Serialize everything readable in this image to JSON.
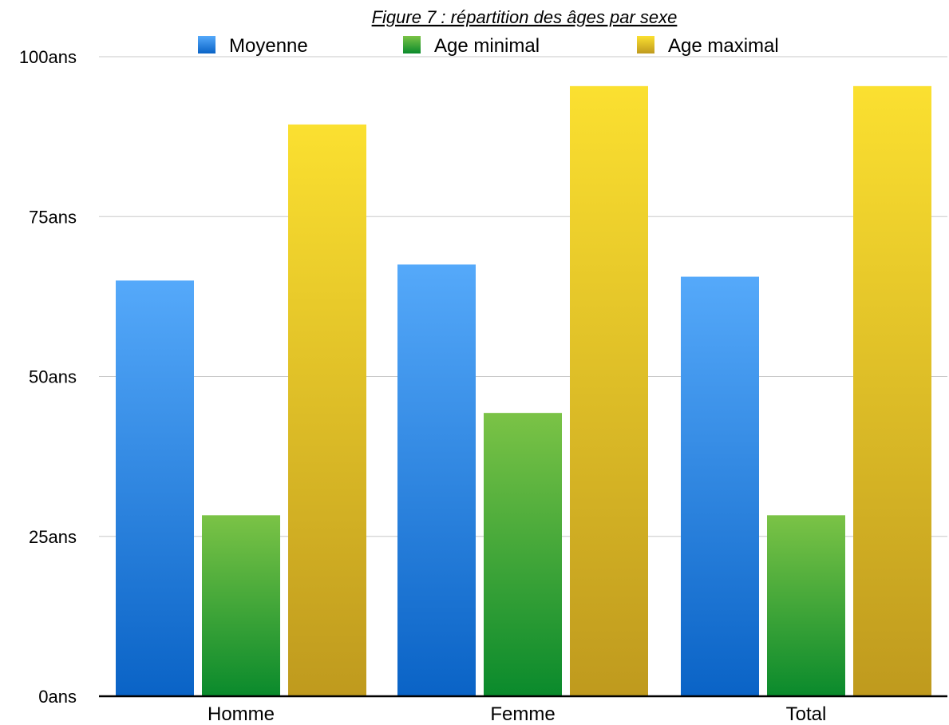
{
  "chart_data": {
    "type": "bar",
    "title": "Figure 7 : répartition des âges par sexe",
    "xlabel": "",
    "ylabel": "",
    "categories": [
      "Homme",
      "Femme",
      "Total"
    ],
    "series": [
      {
        "name": "Moyenne",
        "values": [
          65,
          67.5,
          65.6
        ],
        "color": "#3a8ee6"
      },
      {
        "name": "Age minimal",
        "values": [
          28.3,
          44.3,
          28.3
        ],
        "color": "#3aa83a"
      },
      {
        "name": "Age maximal",
        "values": [
          89.4,
          95.4,
          95.4
        ],
        "color": "#e3c32a"
      }
    ],
    "ylim": [
      0,
      100
    ],
    "yticks": [
      0,
      25,
      50,
      75,
      100
    ],
    "ytick_labels": [
      "0ans",
      "25ans",
      "50ans",
      "75ans",
      "100ans"
    ],
    "grid": true,
    "legend_position": "top"
  }
}
